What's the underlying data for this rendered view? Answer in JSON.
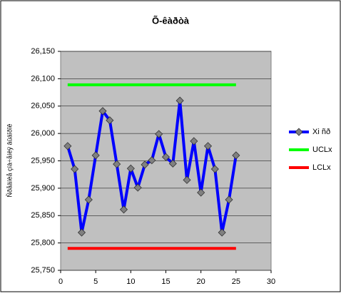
{
  "chart_data": {
    "type": "line",
    "title": "Õ-êàðòà",
    "y_label": "Ñðåäíèå çíà÷åíèÿ âûáîðîê",
    "x": [
      1,
      2,
      3,
      4,
      5,
      6,
      7,
      8,
      9,
      10,
      11,
      12,
      13,
      14,
      15,
      16,
      17,
      18,
      19,
      20,
      21,
      22,
      23,
      24,
      25
    ],
    "series": [
      {
        "name": "Xi ñð",
        "color": "#0000ff",
        "marker": true,
        "values": [
          25977,
          25935,
          25819,
          25879,
          25960,
          26041,
          26024,
          25944,
          25861,
          25936,
          25901,
          25943,
          25951,
          25999,
          25957,
          25945,
          26060,
          25915,
          25986,
          25892,
          25977,
          25935,
          25819,
          25879,
          25960
        ]
      },
      {
        "name": "UCLx",
        "color": "#00ff00",
        "marker": false,
        "values": [
          26089,
          26089,
          26089,
          26089,
          26089,
          26089,
          26089,
          26089,
          26089,
          26089,
          26089,
          26089,
          26089,
          26089,
          26089,
          26089,
          26089,
          26089,
          26089,
          26089,
          26089,
          26089,
          26089,
          26089,
          26089
        ]
      },
      {
        "name": "LCLx",
        "color": "#ff0000",
        "marker": false,
        "values": [
          25790,
          25790,
          25790,
          25790,
          25790,
          25790,
          25790,
          25790,
          25790,
          25790,
          25790,
          25790,
          25790,
          25790,
          25790,
          25790,
          25790,
          25790,
          25790,
          25790,
          25790,
          25790,
          25790,
          25790,
          25790
        ]
      }
    ],
    "xlim": [
      0,
      30
    ],
    "xticks": [
      0,
      5,
      10,
      15,
      20,
      25,
      30
    ],
    "ylim": [
      25750,
      26150
    ],
    "yticks": [
      {
        "value": 25750,
        "label": "25,750"
      },
      {
        "value": 25800,
        "label": "25,800"
      },
      {
        "value": 25850,
        "label": "25,850"
      },
      {
        "value": 25900,
        "label": "25,900"
      },
      {
        "value": 25950,
        "label": "25,950"
      },
      {
        "value": 26000,
        "label": "26,000"
      },
      {
        "value": 26050,
        "label": "26,050"
      },
      {
        "value": 26100,
        "label": "26,100"
      },
      {
        "value": 26150,
        "label": "26,150"
      }
    ],
    "grid": true,
    "legend": "right"
  }
}
